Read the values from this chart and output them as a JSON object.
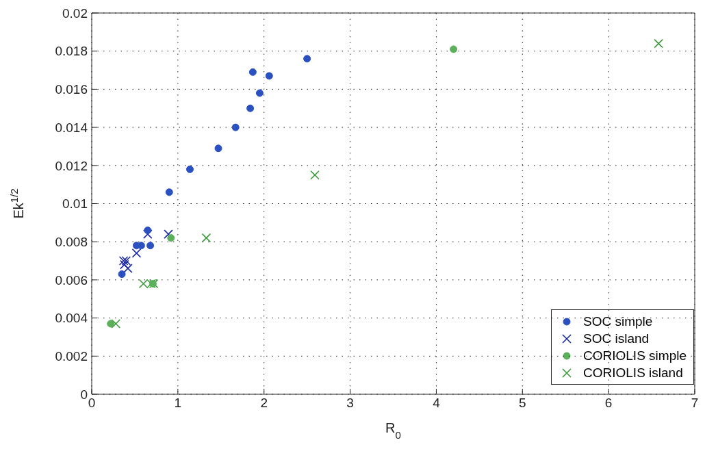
{
  "chart_data": {
    "type": "scatter",
    "xlabel": "R$_{0}$",
    "ylabel": "Ek$^{1/2}$",
    "xlim": [
      0,
      7
    ],
    "ylim": [
      0,
      0.02
    ],
    "xticks": [
      0,
      1,
      2,
      3,
      4,
      5,
      6,
      7
    ],
    "yticks": [
      0,
      0.002,
      0.004,
      0.006,
      0.008,
      0.01,
      0.012,
      0.014,
      0.016,
      0.018,
      0.02
    ],
    "grid": true,
    "legend": "bottom right",
    "series": [
      {
        "name": "SOC simple",
        "color": "#2b50c0",
        "marker": "circle",
        "x": [
          0.35,
          0.52,
          0.575,
          0.65,
          0.68,
          0.9,
          1.14,
          1.47,
          1.67,
          1.84,
          1.87,
          1.95,
          2.06,
          2.5
        ],
        "values": [
          0.0063,
          0.0078,
          0.0078,
          0.0086,
          0.0078,
          0.0106,
          0.0118,
          0.0129,
          0.014,
          0.015,
          0.0169,
          0.0158,
          0.0167,
          0.0176
        ]
      },
      {
        "name": "SOC island",
        "color": "#1c2aa8",
        "marker": "cross",
        "x": [
          0.37,
          0.4,
          0.38,
          0.42,
          0.52,
          0.65,
          0.89
        ],
        "values": [
          0.007,
          0.007,
          0.0068,
          0.0066,
          0.0074,
          0.0084,
          0.0084
        ]
      },
      {
        "name": "CORIOLIS simple",
        "color": "#5cb05c",
        "marker": "circle",
        "x": [
          0.22,
          0.71,
          0.92,
          4.2
        ],
        "values": [
          0.0037,
          0.0058,
          0.0082,
          0.0181
        ]
      },
      {
        "name": "CORIOLIS island",
        "color": "#3a9a3a",
        "marker": "cross",
        "x": [
          0.28,
          0.6,
          0.69,
          0.72,
          1.33,
          2.59,
          6.58
        ],
        "values": [
          0.0037,
          0.0058,
          0.0058,
          0.0058,
          0.0082,
          0.0115,
          0.0184
        ]
      }
    ]
  }
}
